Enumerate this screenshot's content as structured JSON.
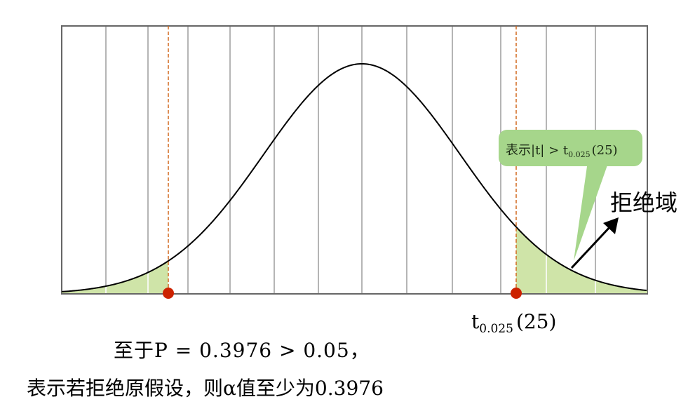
{
  "diagram": {
    "critical_label": "t",
    "critical_sub": "0.025",
    "critical_df": "(25)",
    "region_label": "拒绝域",
    "callout": {
      "prefix": "表示|t| > t",
      "sub": "0.025",
      "suffix": "(25)"
    },
    "text_line1": "至于P = 0.3976 > 0.05，",
    "text_line2": "表示若拒绝原假设，则α值至少为0.3976",
    "colors": {
      "shade": "#cfe4a8",
      "callout": "#a6d68b",
      "dashed": "#d2691e",
      "point": "#cc2200",
      "frame": "#666666",
      "grid": "#b5b5b5"
    }
  }
}
